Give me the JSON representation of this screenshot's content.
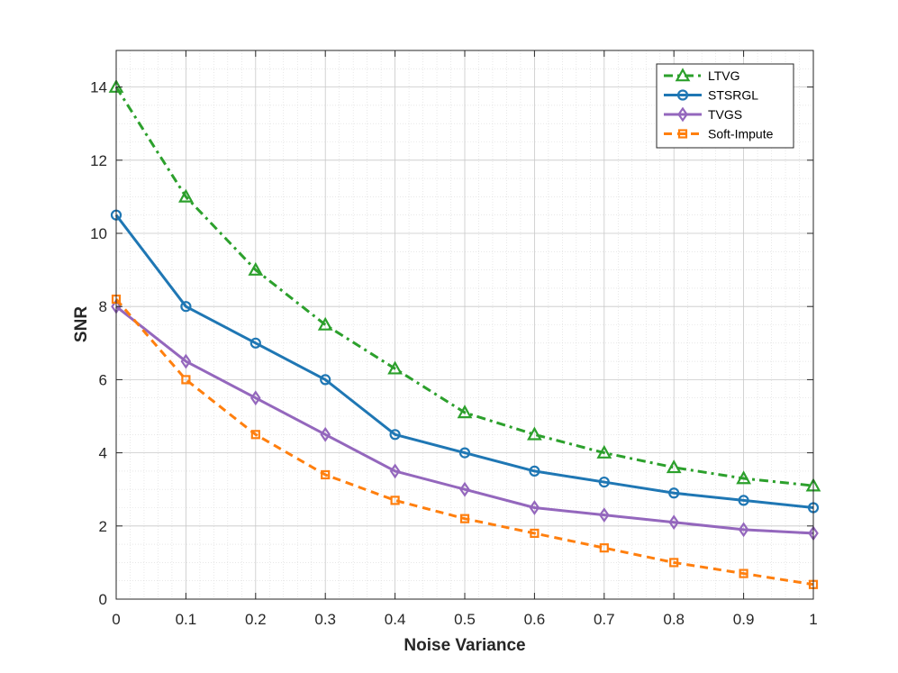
{
  "chart_data": {
    "type": "line",
    "title": "",
    "xlabel": "Noise Variance",
    "ylabel": "SNR",
    "xlim": [
      0,
      1
    ],
    "ylim": [
      0,
      15
    ],
    "x": [
      0,
      0.1,
      0.2,
      0.3,
      0.4,
      0.5,
      0.6,
      0.7,
      0.8,
      0.9,
      1
    ],
    "x_ticks": [
      0,
      0.1,
      0.2,
      0.3,
      0.4,
      0.5,
      0.6,
      0.7,
      0.8,
      0.9,
      1
    ],
    "x_tick_labels": [
      "0",
      "0.1",
      "0.2",
      "0.3",
      "0.4",
      "0.5",
      "0.6",
      "0.7",
      "0.8",
      "0.9",
      "1"
    ],
    "y_ticks": [
      0,
      2,
      4,
      6,
      8,
      10,
      12,
      14
    ],
    "y_tick_labels": [
      "0",
      "2",
      "4",
      "6",
      "8",
      "10",
      "12",
      "14"
    ],
    "grid": true,
    "minor_grid": true,
    "legend_position": "top-right",
    "series": [
      {
        "name": "LTVG",
        "color": "#2ca02c",
        "line": "dashdot",
        "marker": "triangle",
        "values": [
          14.0,
          11.0,
          9.0,
          7.5,
          6.3,
          5.1,
          4.5,
          4.0,
          3.6,
          3.3,
          3.1
        ]
      },
      {
        "name": "STSRGL",
        "color": "#1f77b4",
        "line": "solid",
        "marker": "circle",
        "values": [
          10.5,
          8.0,
          7.0,
          6.0,
          4.5,
          4.0,
          3.5,
          3.2,
          2.9,
          2.7,
          2.5
        ]
      },
      {
        "name": "TVGS",
        "color": "#9467bd",
        "line": "solid",
        "marker": "diamond",
        "values": [
          8.0,
          6.5,
          5.5,
          4.5,
          3.5,
          3.0,
          2.5,
          2.3,
          2.1,
          1.9,
          1.8
        ]
      },
      {
        "name": "Soft-Impute",
        "color": "#ff7f0e",
        "line": "dashed",
        "marker": "square",
        "values": [
          8.2,
          6.0,
          4.5,
          3.4,
          2.7,
          2.2,
          1.8,
          1.4,
          1.0,
          0.7,
          0.4
        ]
      }
    ]
  }
}
